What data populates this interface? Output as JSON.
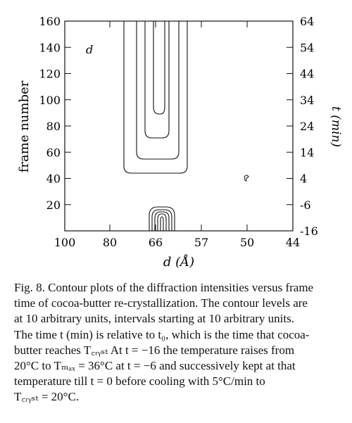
{
  "chart_data": {
    "type": "contour",
    "panel_label": "d",
    "xlabel": "d (Å)",
    "ylabel_left": "frame number",
    "ylabel_right": "t (min)",
    "x_ticks": [
      "100",
      "80",
      "66",
      "57",
      "50",
      "44"
    ],
    "y_left_ticks": [
      "20",
      "40",
      "60",
      "80",
      "100",
      "120",
      "140",
      "160"
    ],
    "y_right_ticks": [
      "-16",
      "-6",
      "4",
      "14",
      "24",
      "34",
      "44",
      "54",
      "64"
    ],
    "ylim_left": [
      0,
      160
    ],
    "ylim_right": [
      -16,
      64
    ],
    "contour_levels_note": "levels at 10 arbitrary units, intervals of 10",
    "regions": [
      {
        "name": "upper crystallization band",
        "d_center": 66,
        "frame_range": [
          52,
          160
        ],
        "nested_contours": 3
      },
      {
        "name": "early melt peak",
        "d_center": 66,
        "frame_range": [
          0,
          18
        ],
        "nested_contours": 5
      },
      {
        "name": "small spot",
        "d_center": 50,
        "frame_range": [
          38,
          42
        ],
        "nested_contours": 1
      }
    ]
  },
  "caption": {
    "lines": [
      "Fig. 8.  Contour plots of the diffraction intensities versus frame",
      "time of cocoa-butter re-crystallization. The contour levels are",
      "at 10 arbitrary units, intervals starting at 10 arbitrary units.",
      "The time t (min) is relative to t₀, which is the time that cocoa-",
      "butter reaches T꜀ᵣᵧₛₜ At t = −16 the temperature raises from",
      "20°C to Tₘₐₓ = 36°C at t = −6 and successively kept at that",
      "temperature till  t = 0  before cooling with 5°C/min to",
      "T꜀ᵣᵧₛₜ = 20°C."
    ]
  }
}
